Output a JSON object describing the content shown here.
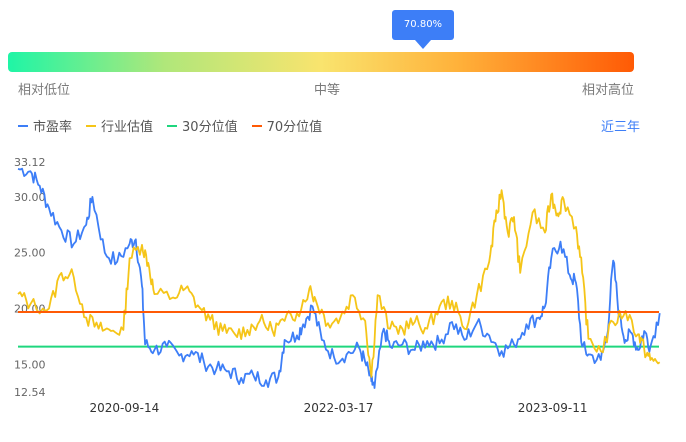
{
  "gauge": {
    "tooltip_value": "70.80%",
    "low_label": "相对低位",
    "mid_label": "中等",
    "high_label": "相对高位",
    "percentile": 0.708
  },
  "period_label": "近三年",
  "colors": {
    "pe": "#3d7ef7",
    "industry": "#f5c518",
    "p30": "#1fd67e",
    "p70": "#ff5a05",
    "accent": "#3d7ef7"
  },
  "chart_data": {
    "type": "line",
    "y_ticks": [
      "33.12",
      "30.00",
      "25.00",
      "20.00",
      "15.00",
      "12.54"
    ],
    "ylim": [
      12.54,
      33.12
    ],
    "x_ticks": [
      "2020-09-14",
      "2022-03-17",
      "2023-09-11"
    ],
    "x_tick_fractions": [
      0.166,
      0.5,
      0.834
    ],
    "p30_value": 16.6,
    "p70_value": 19.7,
    "series": [
      {
        "name": "市盈率",
        "key": "pe",
        "points": [
          [
            0.0,
            32.5
          ],
          [
            0.02,
            32.3
          ],
          [
            0.035,
            31.0
          ],
          [
            0.05,
            29.0
          ],
          [
            0.07,
            27.0
          ],
          [
            0.09,
            25.8
          ],
          [
            0.11,
            27.5
          ],
          [
            0.12,
            30.0
          ],
          [
            0.14,
            25.0
          ],
          [
            0.16,
            24.2
          ],
          [
            0.18,
            25.8
          ],
          [
            0.19,
            26.2
          ],
          [
            0.2,
            22.0
          ],
          [
            0.205,
            16.8
          ],
          [
            0.22,
            16.3
          ],
          [
            0.24,
            16.6
          ],
          [
            0.26,
            15.8
          ],
          [
            0.28,
            16.2
          ],
          [
            0.3,
            15.2
          ],
          [
            0.32,
            14.6
          ],
          [
            0.34,
            14.4
          ],
          [
            0.36,
            13.8
          ],
          [
            0.38,
            14.0
          ],
          [
            0.4,
            13.6
          ],
          [
            0.42,
            13.9
          ],
          [
            0.43,
            17.2
          ],
          [
            0.45,
            17.6
          ],
          [
            0.46,
            18.6
          ],
          [
            0.475,
            20.2
          ],
          [
            0.49,
            17.2
          ],
          [
            0.51,
            15.6
          ],
          [
            0.53,
            15.9
          ],
          [
            0.55,
            16.5
          ],
          [
            0.56,
            15.2
          ],
          [
            0.57,
            13.5
          ],
          [
            0.575,
            12.9
          ],
          [
            0.59,
            18.2
          ],
          [
            0.6,
            16.6
          ],
          [
            0.62,
            16.8
          ],
          [
            0.64,
            16.3
          ],
          [
            0.66,
            17.1
          ],
          [
            0.68,
            16.9
          ],
          [
            0.7,
            18.8
          ],
          [
            0.72,
            17.2
          ],
          [
            0.74,
            18.7
          ],
          [
            0.76,
            17.6
          ],
          [
            0.78,
            16.2
          ],
          [
            0.8,
            16.8
          ],
          [
            0.82,
            18.6
          ],
          [
            0.84,
            19.2
          ],
          [
            0.85,
            20.2
          ],
          [
            0.86,
            24.5
          ],
          [
            0.875,
            26.0
          ],
          [
            0.89,
            23.0
          ],
          [
            0.9,
            22.3
          ],
          [
            0.91,
            16.6
          ],
          [
            0.92,
            15.9
          ],
          [
            0.94,
            15.4
          ],
          [
            0.95,
            17.5
          ],
          [
            0.96,
            24.3
          ],
          [
            0.97,
            19.3
          ],
          [
            0.98,
            17.2
          ],
          [
            0.99,
            17.8
          ],
          [
            1.0,
            16.3
          ],
          [
            1.01,
            18.0
          ],
          [
            1.02,
            16.6
          ],
          [
            1.035,
            19.6
          ]
        ]
      },
      {
        "name": "行业估值",
        "key": "industry",
        "points": [
          [
            0.0,
            21.3
          ],
          [
            0.02,
            20.4
          ],
          [
            0.05,
            20.0
          ],
          [
            0.07,
            23.2
          ],
          [
            0.09,
            22.8
          ],
          [
            0.11,
            19.2
          ],
          [
            0.13,
            18.2
          ],
          [
            0.15,
            18.0
          ],
          [
            0.17,
            18.1
          ],
          [
            0.18,
            24.5
          ],
          [
            0.2,
            25.7
          ],
          [
            0.21,
            24.1
          ],
          [
            0.22,
            21.3
          ],
          [
            0.25,
            21.0
          ],
          [
            0.27,
            21.8
          ],
          [
            0.29,
            20.3
          ],
          [
            0.31,
            19.0
          ],
          [
            0.33,
            18.0
          ],
          [
            0.35,
            17.7
          ],
          [
            0.37,
            18.1
          ],
          [
            0.39,
            18.9
          ],
          [
            0.41,
            18.1
          ],
          [
            0.43,
            18.9
          ],
          [
            0.45,
            19.6
          ],
          [
            0.47,
            21.8
          ],
          [
            0.48,
            20.8
          ],
          [
            0.5,
            18.7
          ],
          [
            0.52,
            19.2
          ],
          [
            0.54,
            21.2
          ],
          [
            0.56,
            18.9
          ],
          [
            0.57,
            13.9
          ],
          [
            0.58,
            21.2
          ],
          [
            0.6,
            18.2
          ],
          [
            0.62,
            18.2
          ],
          [
            0.64,
            18.8
          ],
          [
            0.66,
            18.2
          ],
          [
            0.68,
            20.2
          ],
          [
            0.7,
            20.7
          ],
          [
            0.72,
            18.2
          ],
          [
            0.74,
            21.2
          ],
          [
            0.76,
            24.2
          ],
          [
            0.77,
            27.8
          ],
          [
            0.78,
            30.6
          ],
          [
            0.79,
            26.8
          ],
          [
            0.8,
            28.2
          ],
          [
            0.81,
            23.2
          ],
          [
            0.83,
            28.6
          ],
          [
            0.85,
            26.8
          ],
          [
            0.86,
            30.2
          ],
          [
            0.87,
            28.5
          ],
          [
            0.88,
            29.8
          ],
          [
            0.9,
            27.3
          ],
          [
            0.91,
            23.2
          ],
          [
            0.92,
            17.3
          ],
          [
            0.94,
            16.2
          ],
          [
            0.96,
            18.8
          ],
          [
            0.98,
            19.8
          ],
          [
            1.0,
            17.7
          ],
          [
            1.01,
            16.4
          ],
          [
            1.02,
            15.4
          ],
          [
            1.035,
            15.2
          ]
        ]
      },
      {
        "name": "30分位值",
        "key": "p30",
        "points": []
      },
      {
        "name": "70分位值",
        "key": "p70",
        "points": []
      }
    ]
  }
}
